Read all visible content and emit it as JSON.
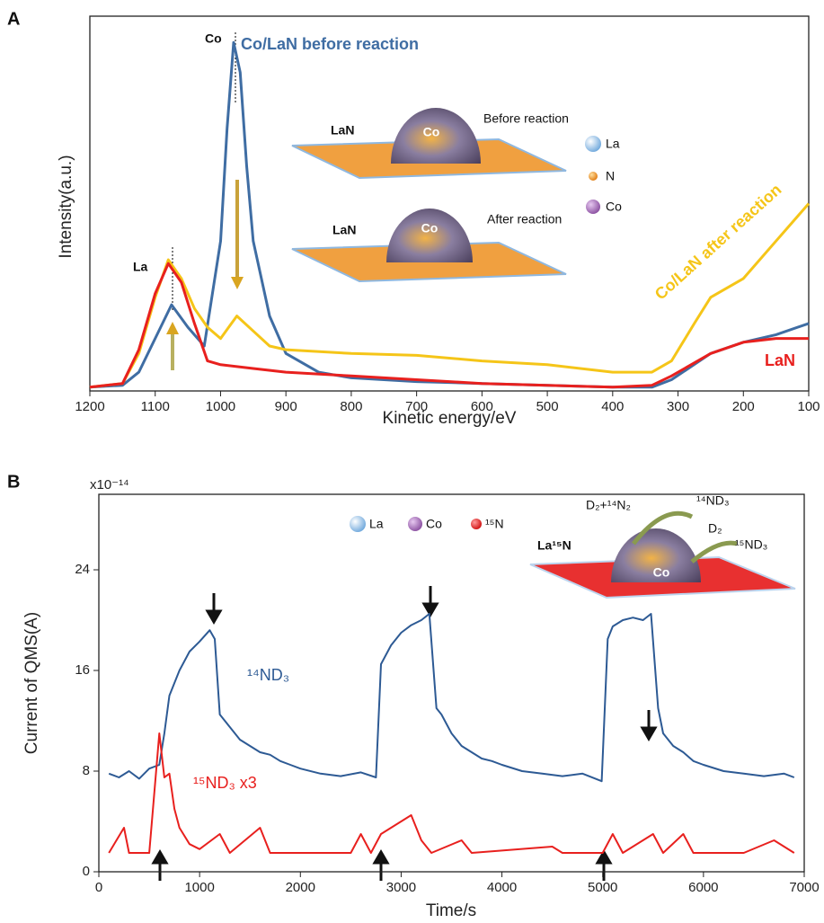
{
  "chart_data": [
    {
      "type": "line",
      "panel_label": "A",
      "xlabel": "Kinetic energy/eV",
      "ylabel": "Intensity(a.u.)",
      "xlim": [
        1200,
        100
      ],
      "xticks": [
        1200,
        1100,
        1000,
        900,
        800,
        700,
        600,
        500,
        400,
        300,
        200,
        100
      ],
      "ylim": [
        0,
        100
      ],
      "series": [
        {
          "name": "Co/LaN before reaction",
          "color": "#3f6da3",
          "x": [
            1200,
            1150,
            1125,
            1100,
            1075,
            1050,
            1025,
            1000,
            990,
            980,
            970,
            960,
            950,
            925,
            900,
            850,
            800,
            700,
            600,
            500,
            400,
            340,
            310,
            250,
            200,
            150,
            100
          ],
          "values": [
            1,
            1.5,
            5,
            14,
            23,
            17,
            12,
            40,
            70,
            93,
            85,
            60,
            40,
            20,
            10,
            5,
            3.5,
            2.5,
            2,
            1.5,
            1,
            1,
            3,
            10,
            13,
            15,
            18
          ]
        },
        {
          "name": "Co/LaN after reaction",
          "color": "#f5c518",
          "x": [
            1200,
            1150,
            1125,
            1100,
            1080,
            1060,
            1040,
            1020,
            1000,
            975,
            950,
            925,
            900,
            800,
            700,
            600,
            500,
            400,
            340,
            310,
            275,
            250,
            200,
            150,
            100
          ],
          "values": [
            1,
            2,
            10,
            25,
            35,
            30,
            22,
            17,
            14,
            20,
            16,
            12,
            11,
            10,
            9.5,
            8,
            7,
            5,
            5,
            8,
            18,
            25,
            30,
            40,
            50
          ]
        },
        {
          "name": "LaN",
          "color": "#e8201e",
          "x": [
            1200,
            1150,
            1125,
            1100,
            1080,
            1060,
            1040,
            1020,
            1000,
            950,
            900,
            800,
            700,
            600,
            500,
            400,
            340,
            310,
            250,
            200,
            150,
            100
          ],
          "values": [
            1,
            2,
            11,
            26,
            34,
            29,
            18,
            8,
            7,
            6,
            5,
            4,
            3,
            2,
            1.5,
            1,
            1.5,
            4,
            10,
            13,
            14,
            14
          ]
        }
      ],
      "annotations": [
        "Co",
        "La",
        "LaN",
        "Before reaction",
        "LaN",
        "After reaction",
        "La",
        "N",
        "Co",
        "Co",
        "Co"
      ]
    },
    {
      "type": "line",
      "panel_label": "B",
      "multiplier": "x10⁻¹⁴",
      "xlabel": "Time/s",
      "ylabel": "Current of QMS(A)",
      "xlim": [
        0,
        7000
      ],
      "xticks": [
        0,
        1000,
        2000,
        3000,
        4000,
        5000,
        6000,
        7000
      ],
      "ylim": [
        0,
        30
      ],
      "yticks": [
        0,
        8,
        16,
        24
      ],
      "series": [
        {
          "name": "¹⁴ND₃",
          "color": "#2d5a94",
          "x": [
            100,
            200,
            300,
            400,
            500,
            600,
            650,
            700,
            800,
            900,
            1000,
            1100,
            1150,
            1200,
            1300,
            1400,
            1500,
            1600,
            1700,
            1800,
            1900,
            2000,
            2200,
            2400,
            2600,
            2750,
            2800,
            2900,
            3000,
            3100,
            3200,
            3280,
            3350,
            3400,
            3500,
            3600,
            3700,
            3800,
            3900,
            4000,
            4200,
            4400,
            4600,
            4800,
            4990,
            5050,
            5100,
            5200,
            5300,
            5400,
            5480,
            5550,
            5600,
            5700,
            5800,
            5900,
            6000,
            6200,
            6400,
            6600,
            6800,
            6900
          ],
          "values": [
            7.8,
            7.5,
            8,
            7.4,
            8.2,
            8.5,
            11,
            14,
            16,
            17.5,
            18.3,
            19.2,
            18.5,
            12.5,
            11.5,
            10.5,
            10,
            9.5,
            9.3,
            8.8,
            8.5,
            8.2,
            7.8,
            7.6,
            7.9,
            7.5,
            16.5,
            18,
            19,
            19.6,
            20,
            20.5,
            13,
            12.5,
            11,
            10,
            9.5,
            9,
            8.8,
            8.5,
            8,
            7.8,
            7.6,
            7.8,
            7.2,
            18.5,
            19.5,
            20,
            20.2,
            20,
            20.5,
            13,
            11,
            10,
            9.5,
            8.8,
            8.5,
            8,
            7.8,
            7.6,
            7.8,
            7.5
          ]
        },
        {
          "name": "¹⁵ND₃ x3",
          "color": "#e8201e",
          "x": [
            100,
            250,
            300,
            500,
            600,
            650,
            700,
            750,
            800,
            900,
            1000,
            1200,
            1300,
            1600,
            1700,
            2500,
            2600,
            2700,
            2800,
            2900,
            3000,
            3100,
            3200,
            3300,
            3600,
            3700,
            4500,
            4600,
            5000,
            5100,
            5200,
            5500,
            5600,
            5800,
            5900,
            6400,
            6700,
            6900
          ],
          "values": [
            1.5,
            3.5,
            1.5,
            1.5,
            11,
            7.5,
            7.8,
            5,
            3.5,
            2.2,
            1.8,
            3,
            1.5,
            3.5,
            1.5,
            1.5,
            3,
            1.5,
            3,
            3.5,
            4,
            4.5,
            2.5,
            1.5,
            2.5,
            1.5,
            2,
            1.5,
            1.5,
            3,
            1.5,
            3,
            1.5,
            3,
            1.5,
            1.5,
            2.5,
            1.5
          ]
        }
      ],
      "annotations": [
        "La",
        "Co",
        "¹⁵N",
        "La¹⁵N",
        "Co",
        "D₂+¹⁴N₂",
        "¹⁴ND₃",
        "D₂",
        "¹⁵ND₃"
      ]
    }
  ]
}
